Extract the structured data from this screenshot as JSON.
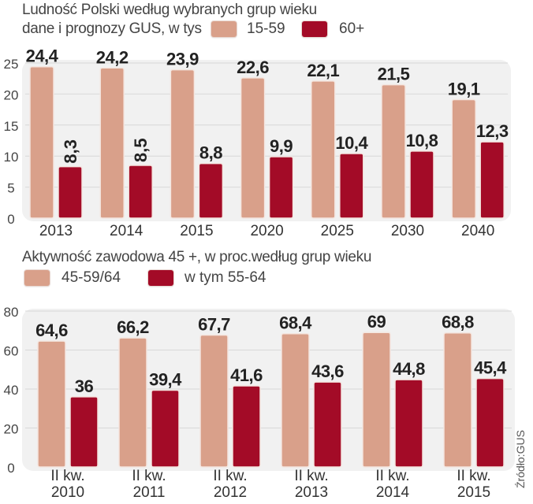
{
  "colors": {
    "series_light": "#d9a08a",
    "series_dark": "#a30b27",
    "panel_bg": "#f1f1f1",
    "grid": "#d8d8d8",
    "value_label": "#222222",
    "axis_label": "#444444"
  },
  "source": "Źródło:GUS",
  "chart_data": [
    {
      "type": "bar",
      "title": "Ludność Polski według wybranych grup wieku",
      "subtitle": "dane i prognozy GUS, w tys",
      "xlabel": "",
      "ylabel": "",
      "ylim": [
        0,
        25
      ],
      "yticks": [
        0,
        5,
        10,
        15,
        20,
        25
      ],
      "grid": true,
      "legend_position": "top",
      "categories": [
        "2013",
        "2014",
        "2015",
        "2020",
        "2025",
        "2030",
        "2040"
      ],
      "series": [
        {
          "name": "15-59",
          "values": [
            24.4,
            24.2,
            23.9,
            22.6,
            22.1,
            21.5,
            19.1
          ],
          "labels": [
            "24,4",
            "24,2",
            "23,9",
            "22,6",
            "22,1",
            "21,5",
            "19,1"
          ]
        },
        {
          "name": "60+",
          "values": [
            8.3,
            8.5,
            8.8,
            9.9,
            10.4,
            10.8,
            12.3
          ],
          "labels": [
            "8,3",
            "8,5",
            "8,8",
            "9,9",
            "10,4",
            "10,8",
            "12,3"
          ]
        }
      ]
    },
    {
      "type": "bar",
      "title": "Aktywność zawodowa  45 +,  w proc.według grup wieku",
      "xlabel": "",
      "ylabel": "",
      "ylim": [
        0,
        80
      ],
      "yticks": [
        0,
        20,
        40,
        60,
        80
      ],
      "grid": true,
      "legend_position": "top",
      "categories": [
        "II kw.\n2010",
        "II kw.\n2011",
        "II kw.\n2012",
        "II kw.\n2013",
        "II kw.\n2014",
        "II kw.\n2015"
      ],
      "series": [
        {
          "name": "45-59/64",
          "values": [
            64.6,
            66.2,
            67.7,
            68.4,
            69,
            68.8
          ],
          "labels": [
            "64,6",
            "66,2",
            "67,7",
            "68,4",
            "69",
            "68,8"
          ]
        },
        {
          "name": "w tym 55-64",
          "values": [
            36,
            39.4,
            41.6,
            43.6,
            44.8,
            45.4
          ],
          "labels": [
            "36",
            "39,4",
            "41,6",
            "43,6",
            "44,8",
            "45,4"
          ]
        }
      ]
    }
  ]
}
